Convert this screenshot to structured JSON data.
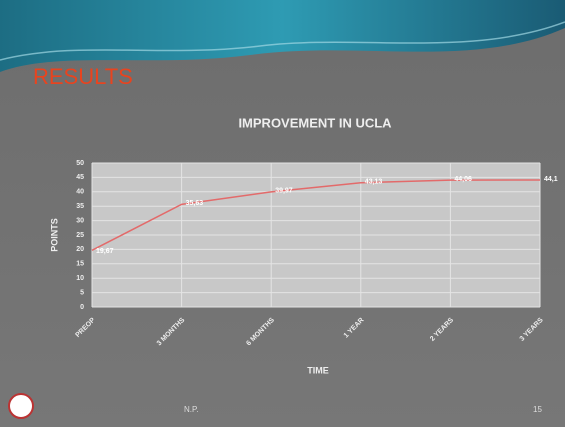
{
  "slide": {
    "heading": "RESULTS",
    "footer": "N.P.",
    "page_number": "15"
  },
  "chart_data": {
    "type": "line",
    "title": "IMPROVEMENT IN UCLA",
    "x_label": "TIME",
    "y_label": "POINTS",
    "categories": [
      "PREOP",
      "3 MONTHS",
      "6 MONTHS",
      "1 YEAR",
      "2 YEARS",
      "3 YEARS"
    ],
    "series": [
      {
        "color": "#e36a6a",
        "values": [
          19.67,
          35.63,
          39.97,
          43.13,
          44.06,
          44.1
        ],
        "value_labels": [
          "19,67",
          "35,63",
          "39,97",
          "43,13",
          "44,06",
          "44,1"
        ]
      }
    ],
    "ylim": [
      0,
      50
    ],
    "yticks": [
      0,
      5,
      10,
      15,
      20,
      25,
      30,
      35,
      40,
      45,
      50
    ],
    "grid": true
  }
}
